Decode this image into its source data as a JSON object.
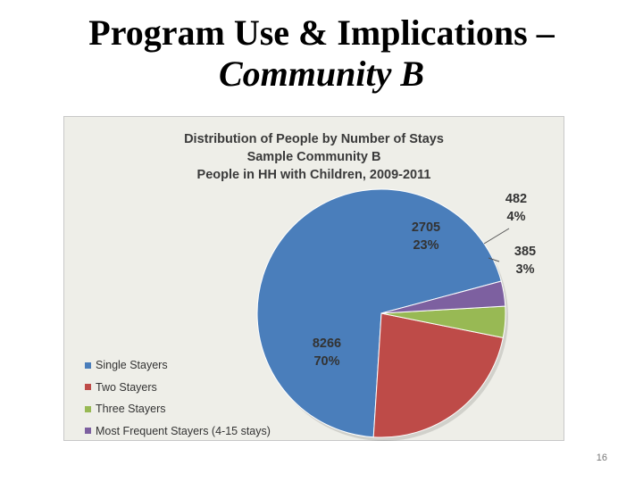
{
  "slide": {
    "title_line1": "Program Use & Implications –",
    "title_line2": "Community B",
    "page_number": "16"
  },
  "chart_data": {
    "type": "pie",
    "title_lines": [
      "Distribution of People by Number of Stays",
      "Sample Community B",
      "People in HH with Children, 2009-2011"
    ],
    "categories": [
      "Single Stayers",
      "Two Stayers",
      "Three Stayers",
      "Most Frequent Stayers (4-15 stays)"
    ],
    "values": [
      8266,
      2705,
      482,
      385
    ],
    "percent_labels": [
      "70%",
      "23%",
      "4%",
      "3%"
    ],
    "colors": [
      "#4a7ebb",
      "#be4b48",
      "#98b954",
      "#7d60a0"
    ],
    "legend_position": "left-bottom"
  }
}
